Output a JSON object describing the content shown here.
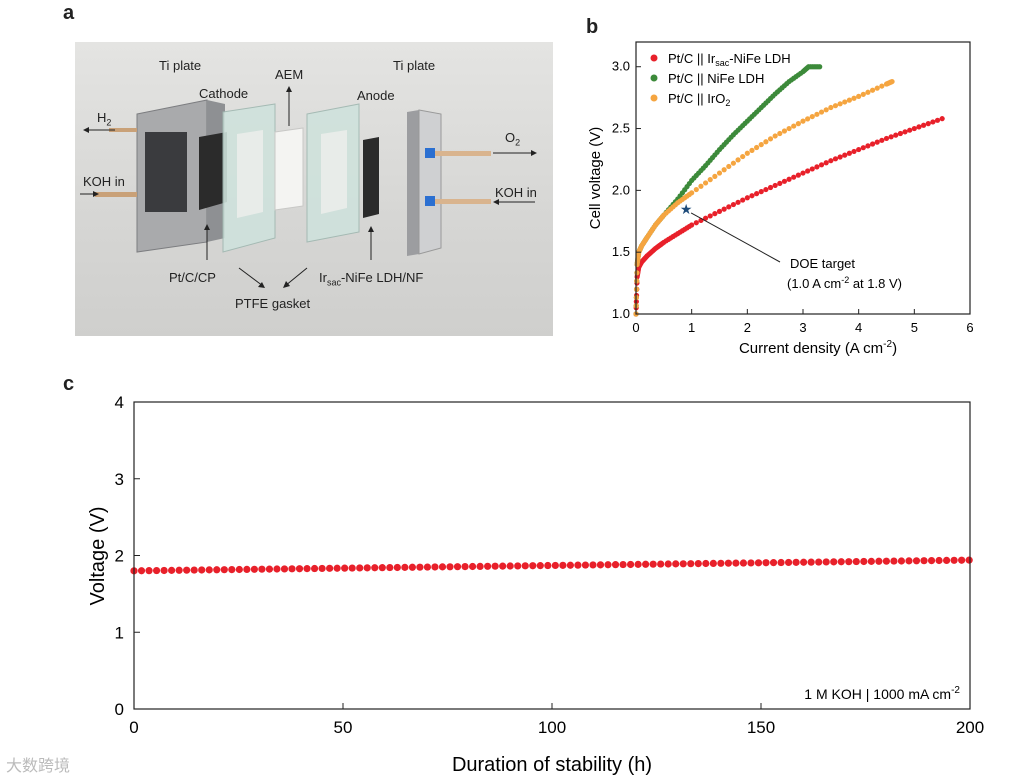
{
  "panels": {
    "a": "a",
    "b": "b",
    "c": "c"
  },
  "photo": {
    "labels": {
      "ti_plate_left": "Ti plate",
      "cathode": "Cathode",
      "aem": "AEM",
      "anode": "Anode",
      "ti_plate_right": "Ti plate",
      "h2": "H",
      "h2_sub": "2",
      "koh_in_left": "KOH in",
      "o2": "O",
      "o2_sub": "2",
      "koh_in_right": "KOH in",
      "pt_c_cp": "Pt/C/CP",
      "ir_main": "Ir",
      "ir_sub": "sac",
      "ir_rest": "-NiFe LDH/NF",
      "ptfe_gasket": "PTFE gasket"
    }
  },
  "chart_data": [
    {
      "id": "b",
      "type": "scatter",
      "xlabel": "Current density (A cm",
      "xlabel_sup": "-2",
      "xlabel_end": ")",
      "ylabel": "Cell voltage (V)",
      "xlim": [
        0,
        6
      ],
      "ylim": [
        1.0,
        3.2
      ],
      "xticks": [
        "0",
        "1",
        "2",
        "3",
        "4",
        "5",
        "6"
      ],
      "yticks": [
        "1.0",
        "1.5",
        "2.0",
        "2.5",
        "3.0"
      ],
      "legend_position": "top-left",
      "series": [
        {
          "name": "Pt/C || Ir",
          "name_sub": "sac",
          "name_end": "-NiFe LDH",
          "color": "#e8202a",
          "x": [
            0,
            0.02,
            0.05,
            0.1,
            0.2,
            0.35,
            0.5,
            0.75,
            1.0,
            1.5,
            2.0,
            2.5,
            3.0,
            3.5,
            4.0,
            4.5,
            5.0,
            5.5
          ],
          "y": [
            1.0,
            1.3,
            1.38,
            1.42,
            1.47,
            1.53,
            1.58,
            1.65,
            1.72,
            1.83,
            1.94,
            2.04,
            2.14,
            2.24,
            2.33,
            2.42,
            2.5,
            2.58
          ]
        },
        {
          "name": "Pt/C || NiFe LDH",
          "color": "#3c8a3a",
          "x": [
            0,
            0.02,
            0.05,
            0.1,
            0.2,
            0.35,
            0.5,
            0.75,
            1.0,
            1.25,
            1.5,
            1.75,
            2.0,
            2.25,
            2.5,
            2.75,
            3.0,
            3.1,
            3.3
          ],
          "y": [
            1.0,
            1.4,
            1.5,
            1.55,
            1.62,
            1.72,
            1.8,
            1.93,
            2.08,
            2.2,
            2.33,
            2.45,
            2.56,
            2.67,
            2.78,
            2.88,
            2.96,
            3.0,
            3.0
          ]
        },
        {
          "name": "Pt/C || IrO",
          "name_sub": "2",
          "color": "#f5a540",
          "x": [
            0,
            0.02,
            0.05,
            0.1,
            0.2,
            0.35,
            0.5,
            0.75,
            1.0,
            1.5,
            2.0,
            2.5,
            3.0,
            3.5,
            4.0,
            4.5,
            4.6
          ],
          "y": [
            1.0,
            1.4,
            1.5,
            1.55,
            1.62,
            1.72,
            1.8,
            1.9,
            1.98,
            2.14,
            2.3,
            2.44,
            2.56,
            2.67,
            2.76,
            2.86,
            2.88
          ]
        }
      ],
      "annotation": {
        "line1": "DOE target",
        "line2_a": "(1.0 A cm",
        "line2_sup": "-2",
        "line2_b": " at 1.8 V)",
        "star_x": 0.9,
        "star_y": 1.85,
        "star_color": "#1e4b7a"
      }
    },
    {
      "id": "c",
      "type": "scatter",
      "xlabel": "Duration of stability (h)",
      "ylabel": "Voltage (V)",
      "xlim": [
        0,
        200
      ],
      "ylim": [
        0,
        4
      ],
      "xticks": [
        "0",
        "50",
        "100",
        "150",
        "200"
      ],
      "yticks": [
        "0",
        "1",
        "2",
        "3",
        "4"
      ],
      "condition_a": "1 M KOH | 1000 mA cm",
      "condition_sup": "-2",
      "series": [
        {
          "color": "#e8202a",
          "start_x": 0,
          "end_x": 200,
          "step_x": 1.8,
          "start_y": 1.8,
          "end_y": 1.94
        }
      ]
    }
  ],
  "watermark": "大数跨境"
}
